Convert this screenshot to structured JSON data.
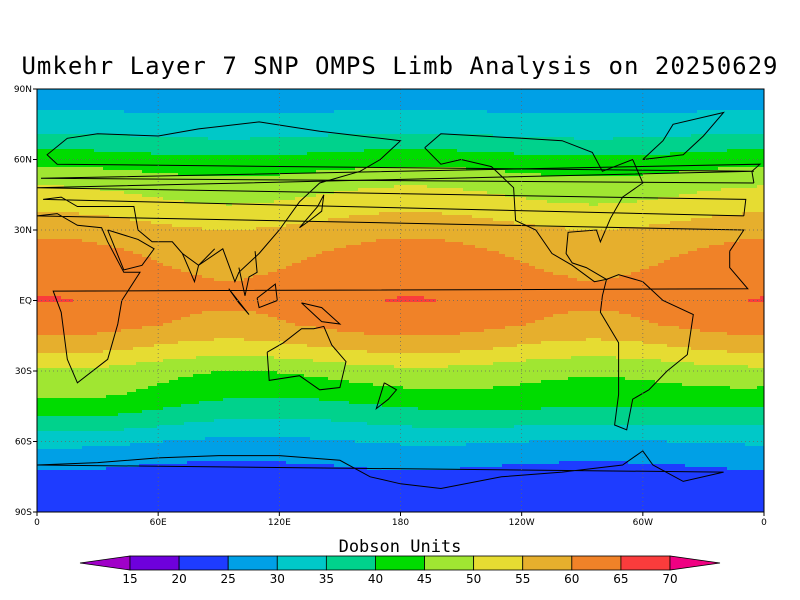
{
  "title": "Umkehr Layer 7 SNP OMPS Limb Analysis on 20250629",
  "lat_labels": [
    "90N",
    "60N",
    "30N",
    "EQ",
    "30S",
    "60S",
    "90S"
  ],
  "lon_labels": [
    "0",
    "60E",
    "120E",
    "180",
    "120W",
    "60W",
    "0"
  ],
  "colorbar": {
    "title": "Dobson Units",
    "levels": [
      15,
      20,
      25,
      30,
      35,
      40,
      45,
      50,
      55,
      60,
      65,
      70
    ],
    "colors": [
      "#a000c8",
      "#6e00dc",
      "#1e3cff",
      "#00a0e6",
      "#00c8c8",
      "#00d28c",
      "#00dc00",
      "#a0e632",
      "#e6dc32",
      "#e6af2d",
      "#f08228",
      "#fa3c3c",
      "#f00082"
    ]
  },
  "chart_data": {
    "type": "heatmap",
    "title": "Umkehr Layer 7 SNP OMPS Limb Analysis on 20250629",
    "units": "Dobson Units",
    "zonal_profile": [
      {
        "lat": 90,
        "du": 28
      },
      {
        "lat": 80,
        "du": 30
      },
      {
        "lat": 70,
        "du": 35
      },
      {
        "lat": 60,
        "du": 42
      },
      {
        "lat": 50,
        "du": 48
      },
      {
        "lat": 40,
        "du": 52
      },
      {
        "lat": 30,
        "du": 57
      },
      {
        "lat": 20,
        "du": 60
      },
      {
        "lat": 10,
        "du": 62
      },
      {
        "lat": 0,
        "du": 63
      },
      {
        "lat": -10,
        "du": 61
      },
      {
        "lat": -20,
        "du": 55
      },
      {
        "lat": -30,
        "du": 47
      },
      {
        "lat": -40,
        "du": 43
      },
      {
        "lat": -50,
        "du": 37
      },
      {
        "lat": -60,
        "du": 30
      },
      {
        "lat": -70,
        "du": 25
      },
      {
        "lat": -80,
        "du": 22
      },
      {
        "lat": -90,
        "du": 21
      }
    ],
    "lon_range": [
      0,
      360
    ],
    "lat_range": [
      -90,
      90
    ],
    "grid": true
  }
}
